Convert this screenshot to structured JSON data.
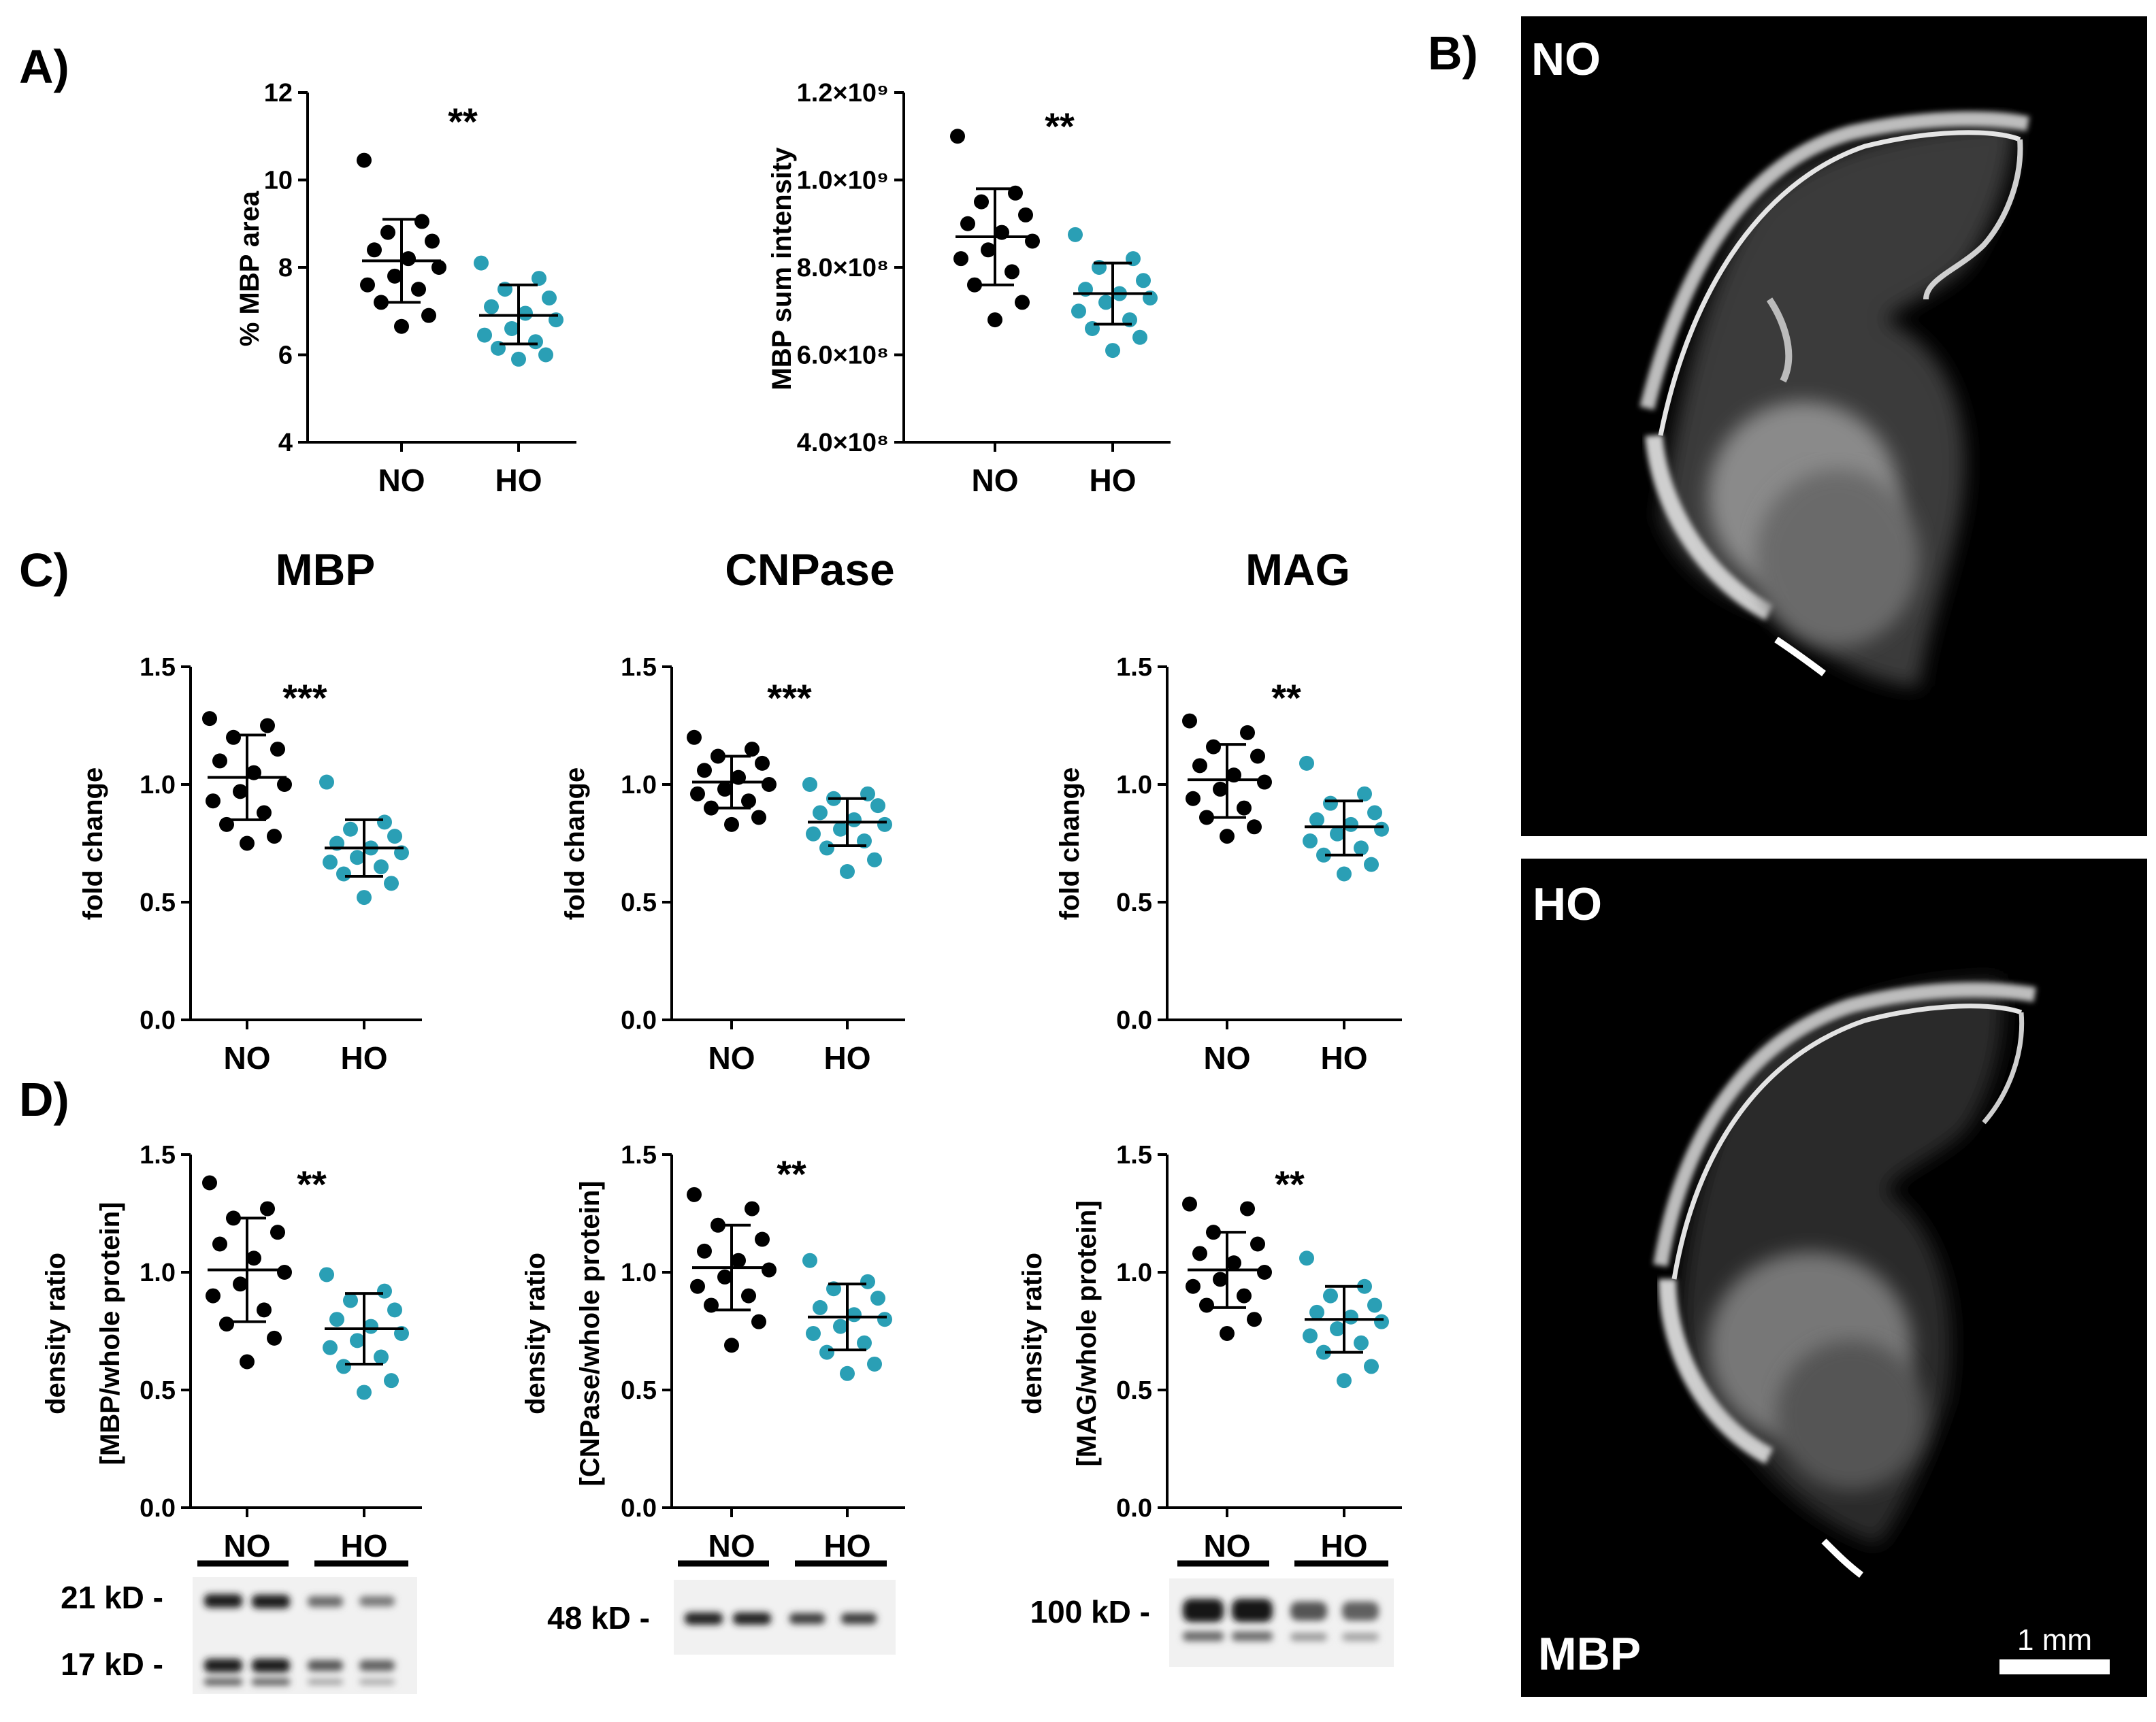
{
  "panel_labels": {
    "a": "A)",
    "b": "B)",
    "c": "C)",
    "d": "D)"
  },
  "colors": {
    "no": "#000000",
    "ho": "#2a9fb5",
    "axis": "#000000"
  },
  "chart_data": [
    {
      "id": "a1",
      "type": "scatter",
      "panel": "A)",
      "title": "",
      "xlabel": "",
      "ylabel": "% MBP area",
      "categories": [
        "NO",
        "HO"
      ],
      "ylim": [
        4,
        12
      ],
      "yticks": [
        4,
        6,
        8,
        10,
        12
      ],
      "yticklabels": [
        "4",
        "6",
        "8",
        "10",
        "12"
      ],
      "significance": "**",
      "series": [
        {
          "name": "NO",
          "color": "#000000",
          "mean": 8.15,
          "sd_low": 7.2,
          "sd_high": 9.1,
          "values": [
            10.45,
            9.05,
            8.8,
            8.6,
            8.4,
            8.2,
            8.0,
            7.8,
            7.6,
            7.5,
            7.2,
            6.9,
            6.65
          ]
        },
        {
          "name": "HO",
          "color": "#2a9fb5",
          "mean": 6.9,
          "sd_low": 6.25,
          "sd_high": 7.6,
          "values": [
            8.1,
            7.75,
            7.5,
            7.3,
            7.1,
            6.95,
            6.8,
            6.6,
            6.45,
            6.3,
            6.15,
            6.0,
            5.9
          ]
        }
      ]
    },
    {
      "id": "a2",
      "type": "scatter",
      "panel": "A)",
      "title": "",
      "xlabel": "",
      "ylabel": "MBP sum intensity",
      "categories": [
        "NO",
        "HO"
      ],
      "ylim": [
        400000000,
        1200000000
      ],
      "yticks": [
        400000000,
        600000000,
        800000000,
        1000000000,
        1200000000
      ],
      "yticklabels": [
        "4.0×10⁸",
        "6.0×10⁸",
        "8.0×10⁸",
        "1.0×10⁹",
        "1.2×10⁹"
      ],
      "significance": "**",
      "series": [
        {
          "name": "NO",
          "color": "#000000",
          "mean": 870000000,
          "sd_low": 760000000,
          "sd_high": 980000000,
          "values": [
            1100000000,
            970000000,
            950000000,
            920000000,
            900000000,
            880000000,
            860000000,
            840000000,
            820000000,
            790000000,
            760000000,
            720000000,
            680000000
          ]
        },
        {
          "name": "HO",
          "color": "#2a9fb5",
          "mean": 740000000,
          "sd_low": 670000000,
          "sd_high": 810000000,
          "values": [
            875000000,
            820000000,
            800000000,
            770000000,
            750000000,
            740000000,
            730000000,
            720000000,
            700000000,
            680000000,
            660000000,
            640000000,
            610000000
          ]
        }
      ]
    },
    {
      "id": "c1",
      "type": "scatter",
      "panel": "C)",
      "title": "MBP",
      "xlabel": "",
      "ylabel": "fold change",
      "categories": [
        "NO",
        "HO"
      ],
      "ylim": [
        0,
        1.5
      ],
      "yticks": [
        0,
        0.5,
        1.0,
        1.5
      ],
      "yticklabels": [
        "0.0",
        "0.5",
        "1.0",
        "1.5"
      ],
      "significance": "***",
      "series": [
        {
          "name": "NO",
          "color": "#000000",
          "mean": 1.03,
          "sd_low": 0.85,
          "sd_high": 1.21,
          "values": [
            1.28,
            1.25,
            1.2,
            1.15,
            1.1,
            1.05,
            1.0,
            0.97,
            0.93,
            0.88,
            0.83,
            0.78,
            0.75
          ]
        },
        {
          "name": "HO",
          "color": "#2a9fb5",
          "mean": 0.73,
          "sd_low": 0.61,
          "sd_high": 0.85,
          "values": [
            1.01,
            0.84,
            0.81,
            0.78,
            0.75,
            0.73,
            0.71,
            0.69,
            0.67,
            0.65,
            0.62,
            0.58,
            0.52
          ]
        }
      ]
    },
    {
      "id": "c2",
      "type": "scatter",
      "panel": "C)",
      "title": "CNPase",
      "xlabel": "",
      "ylabel": "fold change",
      "categories": [
        "NO",
        "HO"
      ],
      "ylim": [
        0,
        1.5
      ],
      "yticks": [
        0,
        0.5,
        1.0,
        1.5
      ],
      "yticklabels": [
        "0.0",
        "0.5",
        "1.0",
        "1.5"
      ],
      "significance": "***",
      "series": [
        {
          "name": "NO",
          "color": "#000000",
          "mean": 1.01,
          "sd_low": 0.9,
          "sd_high": 1.12,
          "values": [
            1.2,
            1.15,
            1.12,
            1.09,
            1.06,
            1.03,
            1.0,
            0.98,
            0.96,
            0.93,
            0.9,
            0.86,
            0.83
          ]
        },
        {
          "name": "HO",
          "color": "#2a9fb5",
          "mean": 0.84,
          "sd_low": 0.74,
          "sd_high": 0.94,
          "values": [
            1.0,
            0.96,
            0.94,
            0.91,
            0.88,
            0.85,
            0.83,
            0.81,
            0.79,
            0.76,
            0.73,
            0.68,
            0.63
          ]
        }
      ]
    },
    {
      "id": "c3",
      "type": "scatter",
      "panel": "C)",
      "title": "MAG",
      "xlabel": "",
      "ylabel": "fold change",
      "categories": [
        "NO",
        "HO"
      ],
      "ylim": [
        0,
        1.5
      ],
      "yticks": [
        0,
        0.5,
        1.0,
        1.5
      ],
      "yticklabels": [
        "0.0",
        "0.5",
        "1.0",
        "1.5"
      ],
      "significance": "**",
      "series": [
        {
          "name": "NO",
          "color": "#000000",
          "mean": 1.02,
          "sd_low": 0.86,
          "sd_high": 1.17,
          "values": [
            1.27,
            1.22,
            1.16,
            1.12,
            1.08,
            1.04,
            1.01,
            0.98,
            0.94,
            0.9,
            0.86,
            0.82,
            0.78
          ]
        },
        {
          "name": "HO",
          "color": "#2a9fb5",
          "mean": 0.82,
          "sd_low": 0.7,
          "sd_high": 0.93,
          "values": [
            1.09,
            0.96,
            0.92,
            0.88,
            0.85,
            0.83,
            0.81,
            0.79,
            0.76,
            0.73,
            0.7,
            0.66,
            0.62
          ]
        }
      ]
    },
    {
      "id": "d1",
      "type": "scatter",
      "panel": "D)",
      "title": "",
      "xlabel": "",
      "ylabel": "density ratio",
      "ylabel2": "[MBP/whole protein]",
      "categories": [
        "NO",
        "HO"
      ],
      "ylim": [
        0,
        1.5
      ],
      "yticks": [
        0,
        0.5,
        1.0,
        1.5
      ],
      "yticklabels": [
        "0.0",
        "0.5",
        "1.0",
        "1.5"
      ],
      "significance": "**",
      "series": [
        {
          "name": "NO",
          "color": "#000000",
          "mean": 1.01,
          "sd_low": 0.79,
          "sd_high": 1.23,
          "values": [
            1.38,
            1.27,
            1.23,
            1.17,
            1.12,
            1.06,
            1.0,
            0.95,
            0.9,
            0.84,
            0.78,
            0.72,
            0.62
          ]
        },
        {
          "name": "HO",
          "color": "#2a9fb5",
          "mean": 0.76,
          "sd_low": 0.61,
          "sd_high": 0.91,
          "values": [
            0.99,
            0.92,
            0.88,
            0.84,
            0.8,
            0.77,
            0.74,
            0.71,
            0.68,
            0.64,
            0.6,
            0.54,
            0.49
          ]
        }
      ]
    },
    {
      "id": "d2",
      "type": "scatter",
      "panel": "D)",
      "title": "",
      "xlabel": "",
      "ylabel": "density ratio",
      "ylabel2": "[CNPase/whole protein]",
      "categories": [
        "NO",
        "HO"
      ],
      "ylim": [
        0,
        1.5
      ],
      "yticks": [
        0,
        0.5,
        1.0,
        1.5
      ],
      "yticklabels": [
        "0.0",
        "0.5",
        "1.0",
        "1.5"
      ],
      "significance": "**",
      "series": [
        {
          "name": "NO",
          "color": "#000000",
          "mean": 1.02,
          "sd_low": 0.84,
          "sd_high": 1.2,
          "values": [
            1.33,
            1.27,
            1.2,
            1.14,
            1.09,
            1.05,
            1.01,
            0.98,
            0.94,
            0.9,
            0.86,
            0.79,
            0.69
          ]
        },
        {
          "name": "HO",
          "color": "#2a9fb5",
          "mean": 0.81,
          "sd_low": 0.67,
          "sd_high": 0.95,
          "values": [
            1.05,
            0.96,
            0.93,
            0.89,
            0.85,
            0.82,
            0.8,
            0.77,
            0.74,
            0.7,
            0.66,
            0.61,
            0.57
          ]
        }
      ]
    },
    {
      "id": "d3",
      "type": "scatter",
      "panel": "D)",
      "title": "",
      "xlabel": "",
      "ylabel": "density ratio",
      "ylabel2": "[MAG/whole protein]",
      "categories": [
        "NO",
        "HO"
      ],
      "ylim": [
        0,
        1.5
      ],
      "yticks": [
        0,
        0.5,
        1.0,
        1.5
      ],
      "yticklabels": [
        "0.0",
        "0.5",
        "1.0",
        "1.5"
      ],
      "significance": "**",
      "series": [
        {
          "name": "NO",
          "color": "#000000",
          "mean": 1.01,
          "sd_low": 0.85,
          "sd_high": 1.17,
          "values": [
            1.29,
            1.27,
            1.17,
            1.12,
            1.08,
            1.04,
            1.0,
            0.97,
            0.94,
            0.9,
            0.86,
            0.8,
            0.74
          ]
        },
        {
          "name": "HO",
          "color": "#2a9fb5",
          "mean": 0.8,
          "sd_low": 0.66,
          "sd_high": 0.94,
          "values": [
            1.06,
            0.94,
            0.9,
            0.86,
            0.83,
            0.81,
            0.79,
            0.76,
            0.73,
            0.7,
            0.66,
            0.6,
            0.54
          ]
        }
      ]
    }
  ],
  "blots": [
    {
      "id": "mbp",
      "group_labels": [
        "NO",
        "HO"
      ],
      "markers": [
        "21 kD -",
        "17 kD -"
      ]
    },
    {
      "id": "cnpase",
      "group_labels": [
        "NO",
        "HO"
      ],
      "markers": [
        "48 kD -"
      ]
    },
    {
      "id": "mag",
      "group_labels": [
        "NO",
        "HO"
      ],
      "markers": [
        "100 kD -"
      ]
    }
  ],
  "micrographs": {
    "top_label": "NO",
    "bottom_label": "HO",
    "stain_label": "MBP",
    "scale_bar": "1 mm"
  }
}
